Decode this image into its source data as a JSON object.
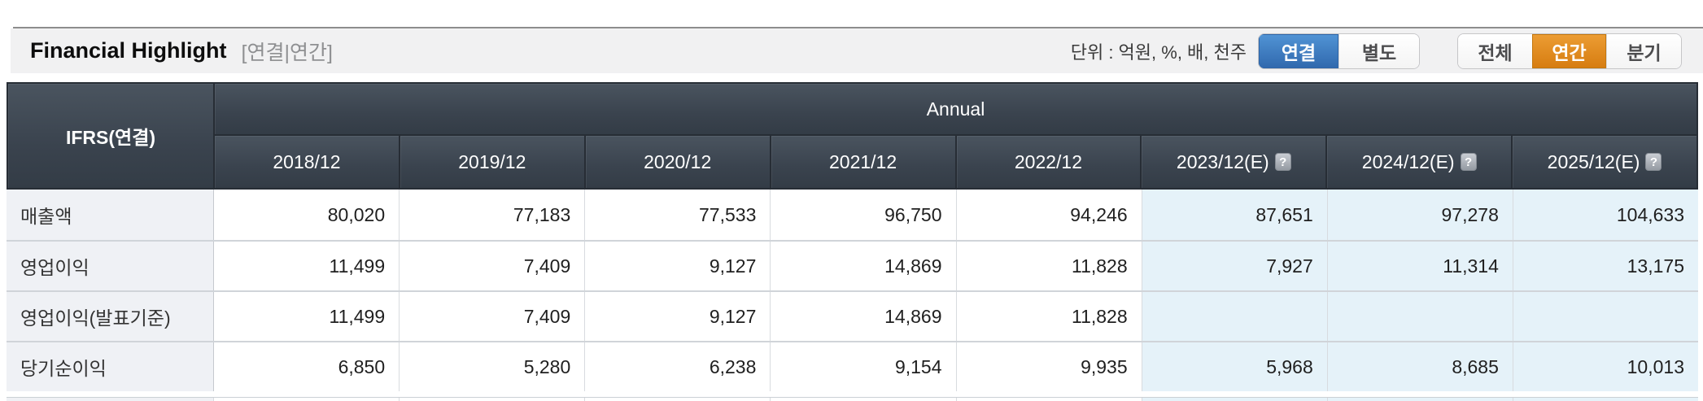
{
  "header": {
    "title": "Financial Highlight",
    "subtitle": "[연결|연간]",
    "unit_label": "단위 : 억원, %, 배, 천주",
    "toggle_consolidated": {
      "options": [
        "연결",
        "별도"
      ],
      "active": "연결"
    },
    "toggle_period": {
      "options": [
        "전체",
        "연간",
        "분기"
      ],
      "active": "연간"
    }
  },
  "table": {
    "corner_label": "IFRS(연결)",
    "group_header": "Annual",
    "help_icon_glyph": "?",
    "columns": [
      {
        "label": "2018/12",
        "estimate": false
      },
      {
        "label": "2019/12",
        "estimate": false
      },
      {
        "label": "2020/12",
        "estimate": false
      },
      {
        "label": "2021/12",
        "estimate": false
      },
      {
        "label": "2022/12",
        "estimate": false
      },
      {
        "label": "2023/12(E)",
        "estimate": true
      },
      {
        "label": "2024/12(E)",
        "estimate": true
      },
      {
        "label": "2025/12(E)",
        "estimate": true
      }
    ],
    "rows": [
      {
        "label": "매출액",
        "values": [
          "80,020",
          "77,183",
          "77,533",
          "96,750",
          "94,246",
          "87,651",
          "97,278",
          "104,633"
        ]
      },
      {
        "label": "영업이익",
        "values": [
          "11,499",
          "7,409",
          "9,127",
          "14,869",
          "11,828",
          "7,927",
          "11,314",
          "13,175"
        ]
      },
      {
        "label": "영업이익(발표기준)",
        "values": [
          "11,499",
          "7,409",
          "9,127",
          "14,869",
          "11,828",
          "",
          "",
          ""
        ]
      },
      {
        "label": "당기순이익",
        "values": [
          "6,850",
          "5,280",
          "6,238",
          "9,154",
          "9,935",
          "5,968",
          "8,685",
          "10,013"
        ]
      }
    ]
  },
  "colors": {
    "accent_blue": "#3f7fc1",
    "accent_orange": "#dd8a1f",
    "header_dark_top": "#4a545f",
    "header_dark_bottom": "#333c46",
    "estimate_bg": "#e5f2f9",
    "label_bg": "#eff1f5",
    "bar_bg": "#f1f1f2"
  }
}
